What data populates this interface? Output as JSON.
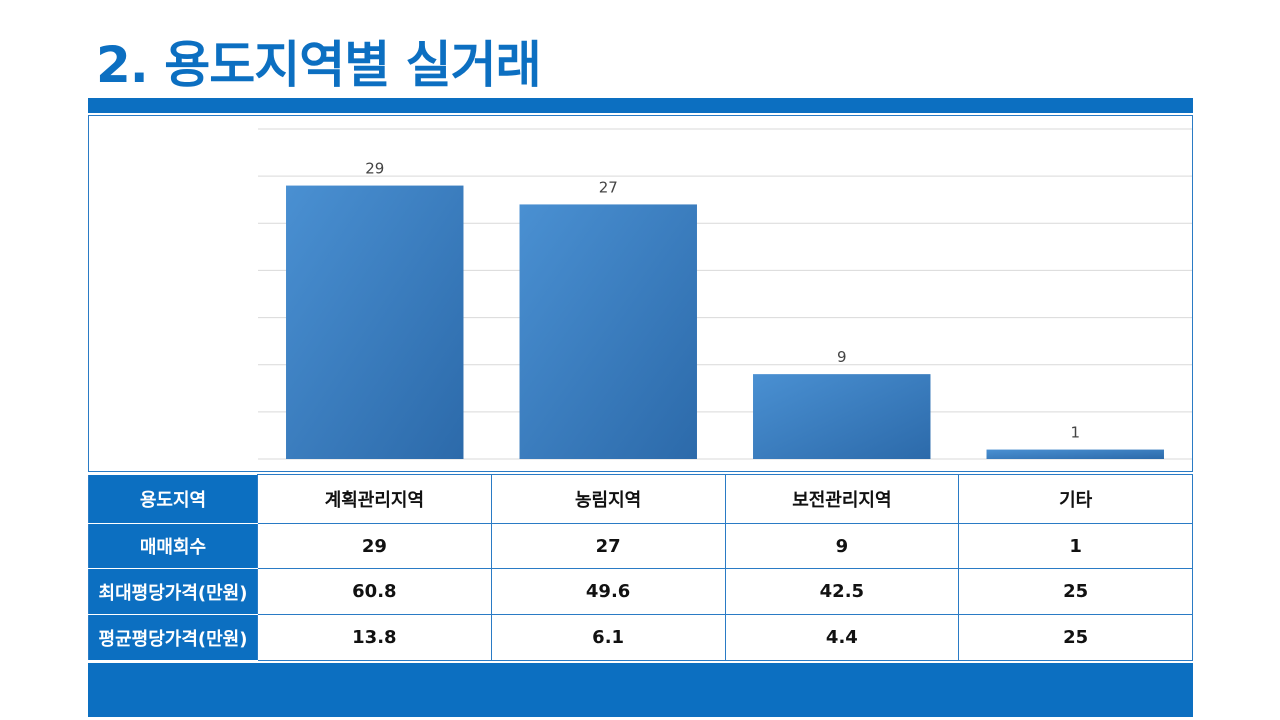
{
  "page": {
    "title": "2. 용도지역별 실거래"
  },
  "colors": {
    "accent": "#0c6fc1",
    "bar_light": "#4a90d2",
    "bar_dark": "#2c6aaa",
    "grid": "#d9d9d9"
  },
  "chart_data": {
    "type": "bar",
    "title": "",
    "xlabel": "",
    "ylabel": "",
    "categories": [
      "계획관리지역",
      "농림지역",
      "보전관리지역",
      "기타"
    ],
    "series": [
      {
        "values": [
          29,
          27,
          9,
          1
        ]
      }
    ],
    "data_labels": [
      "29",
      "27",
      "9",
      "1"
    ],
    "ylim": [
      0,
      35
    ],
    "grid": true,
    "gridline_step": 5,
    "legend": "none"
  },
  "table": {
    "header_label": "용도지역",
    "columns": [
      "계획관리지역",
      "농림지역",
      "보전관리지역",
      "기타"
    ],
    "rows": [
      {
        "label": "매매회수",
        "cells": [
          "29",
          "27",
          "9",
          "1"
        ]
      },
      {
        "label": "최대평당가격(만원)",
        "cells": [
          "60.8",
          "49.6",
          "42.5",
          "25"
        ]
      },
      {
        "label": "평균평당가격(만원)",
        "cells": [
          "13.8",
          "6.1",
          "4.4",
          "25"
        ]
      }
    ]
  }
}
